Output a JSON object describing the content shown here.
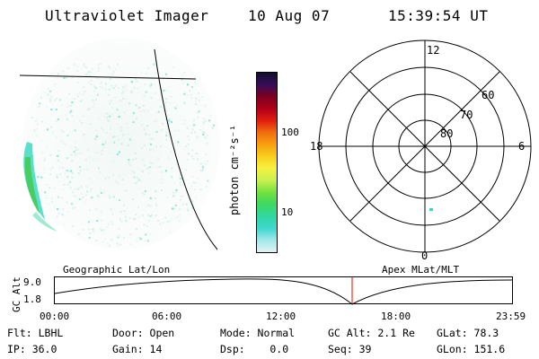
{
  "header": {
    "instrument": "Ultraviolet Imager",
    "date": "10 Aug 07",
    "time": "15:39:54 UT"
  },
  "colorbar": {
    "label": "photon cm⁻²s⁻¹",
    "ticks": [
      "100",
      "10"
    ],
    "colors": [
      "#101030",
      "#3a0d5a",
      "#7a0020",
      "#b00018",
      "#e02010",
      "#f06a10",
      "#f8a010",
      "#f8d020",
      "#f8f040",
      "#c8f050",
      "#70e040",
      "#40d860",
      "#30d8a0",
      "#40d8d0",
      "#a0e8e8",
      "#e0f2f2"
    ]
  },
  "polar_plot": {
    "mlt_labels": [
      "12",
      "18",
      "6",
      "0"
    ],
    "lat_labels": [
      "60",
      "70",
      "80"
    ]
  },
  "timeline": {
    "left_caption": "Geographic Lat/Lon",
    "right_caption": "Apex MLat/MLT",
    "y_axis_label": "GC Alt",
    "y_ticks": [
      "9.0",
      "1.8"
    ],
    "x_ticks": [
      "00:00",
      "06:00",
      "12:00",
      "18:00",
      "23:59"
    ],
    "current_time_marker_color": "#ff0000"
  },
  "info": {
    "row1": [
      "Flt: LBHL",
      "Door: Open",
      "Mode: Normal",
      "GC Alt: 2.1 Re",
      "GLat: 78.3"
    ],
    "row2": [
      "IP: 36.0",
      "Gain: 14",
      "Dsp:    0.0",
      "Seq: 39",
      "GLon: 151.6"
    ]
  },
  "colors": {
    "aurora_dim": "#c8e8e0",
    "aurora_mid": "#30d8c0",
    "aurora_bright": "#40c840"
  }
}
